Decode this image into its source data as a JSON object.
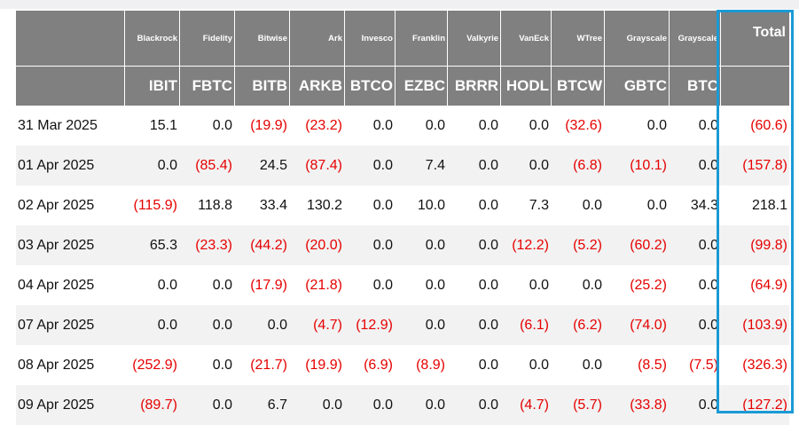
{
  "table": {
    "columns": [
      {
        "issuer": "Blackrock",
        "ticker": "IBIT"
      },
      {
        "issuer": "Fidelity",
        "ticker": "FBTC"
      },
      {
        "issuer": "Bitwise",
        "ticker": "BITB"
      },
      {
        "issuer": "Ark",
        "ticker": "ARKB"
      },
      {
        "issuer": "Invesco",
        "ticker": "BTCO"
      },
      {
        "issuer": "Franklin",
        "ticker": "EZBC"
      },
      {
        "issuer": "Valkyrie",
        "ticker": "BRRR"
      },
      {
        "issuer": "VanEck",
        "ticker": "HODL"
      },
      {
        "issuer": "WTree",
        "ticker": "BTCW"
      },
      {
        "issuer": "Grayscale",
        "ticker": "GBTC"
      },
      {
        "issuer": "Grayscale",
        "ticker": "BTC"
      }
    ],
    "total_label": "Total",
    "rows": [
      {
        "date": "31 Mar 2025",
        "values": [
          "15.1",
          "0.0",
          "(19.9)",
          "(23.2)",
          "0.0",
          "0.0",
          "0.0",
          "0.0",
          "(32.6)",
          "0.0",
          "0.0"
        ],
        "total": "(60.6)"
      },
      {
        "date": "01 Apr 2025",
        "values": [
          "0.0",
          "(85.4)",
          "24.5",
          "(87.4)",
          "0.0",
          "7.4",
          "0.0",
          "0.0",
          "(6.8)",
          "(10.1)",
          "0.0"
        ],
        "total": "(157.8)"
      },
      {
        "date": "02 Apr 2025",
        "values": [
          "(115.9)",
          "118.8",
          "33.4",
          "130.2",
          "0.0",
          "10.0",
          "0.0",
          "7.3",
          "0.0",
          "0.0",
          "34.3"
        ],
        "total": "218.1"
      },
      {
        "date": "03 Apr 2025",
        "values": [
          "65.3",
          "(23.3)",
          "(44.2)",
          "(20.0)",
          "0.0",
          "0.0",
          "0.0",
          "(12.2)",
          "(5.2)",
          "(60.2)",
          "0.0"
        ],
        "total": "(99.8)"
      },
      {
        "date": "04 Apr 2025",
        "values": [
          "0.0",
          "0.0",
          "(17.9)",
          "(21.8)",
          "0.0",
          "0.0",
          "0.0",
          "0.0",
          "0.0",
          "(25.2)",
          "0.0"
        ],
        "total": "(64.9)"
      },
      {
        "date": "07 Apr 2025",
        "values": [
          "0.0",
          "0.0",
          "0.0",
          "(4.7)",
          "(12.9)",
          "0.0",
          "0.0",
          "(6.1)",
          "(6.2)",
          "(74.0)",
          "0.0"
        ],
        "total": "(103.9)"
      },
      {
        "date": "08 Apr 2025",
        "values": [
          "(252.9)",
          "0.0",
          "(21.7)",
          "(19.9)",
          "(6.9)",
          "(8.9)",
          "0.0",
          "0.0",
          "0.0",
          "(8.5)",
          "(7.5)"
        ],
        "total": "(326.3)"
      },
      {
        "date": "09 Apr 2025",
        "values": [
          "(89.7)",
          "0.0",
          "6.7",
          "0.0",
          "0.0",
          "0.0",
          "0.0",
          "(4.7)",
          "(5.7)",
          "(33.8)",
          "0.0"
        ],
        "total": "(127.2)"
      }
    ]
  },
  "colors": {
    "header_bg": "#808080",
    "negative": "#e60000",
    "highlight_border": "#1a9ad6",
    "stripe": "#f2f2f2"
  }
}
